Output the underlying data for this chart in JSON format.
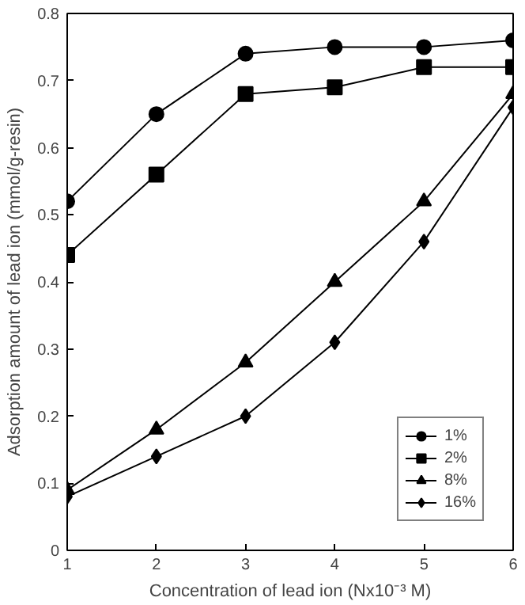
{
  "chart_data": {
    "type": "line",
    "xlabel": "Concentration of lead ion (Nx10⁻³ M)",
    "ylabel": "Adsorption amount of lead ion (mmol/g-resin)",
    "x": [
      1,
      2,
      3,
      4,
      5,
      6
    ],
    "xlim": [
      1,
      6
    ],
    "xticks": [
      1,
      2,
      3,
      4,
      5,
      6
    ],
    "ylim": [
      0,
      0.8
    ],
    "yticks": [
      0,
      0.1,
      0.2,
      0.3,
      0.4,
      0.5,
      0.6,
      0.7,
      0.8
    ],
    "grid": false,
    "legend": "bottom right",
    "line_style": "solid",
    "series": [
      {
        "name": "1%",
        "color": "#000000",
        "marker": "circle",
        "values": [
          0.52,
          0.65,
          0.74,
          0.75,
          0.75,
          0.76
        ]
      },
      {
        "name": "2%",
        "color": "#000000",
        "marker": "square",
        "values": [
          0.44,
          0.56,
          0.68,
          0.69,
          0.72,
          0.72
        ]
      },
      {
        "name": "8%",
        "color": "#000000",
        "marker": "triangle",
        "values": [
          0.09,
          0.18,
          0.28,
          0.4,
          0.52,
          0.68
        ]
      },
      {
        "name": "16%",
        "color": "#000000",
        "marker": "diamond",
        "values": [
          0.08,
          0.14,
          0.2,
          0.31,
          0.46,
          0.66
        ]
      }
    ]
  }
}
